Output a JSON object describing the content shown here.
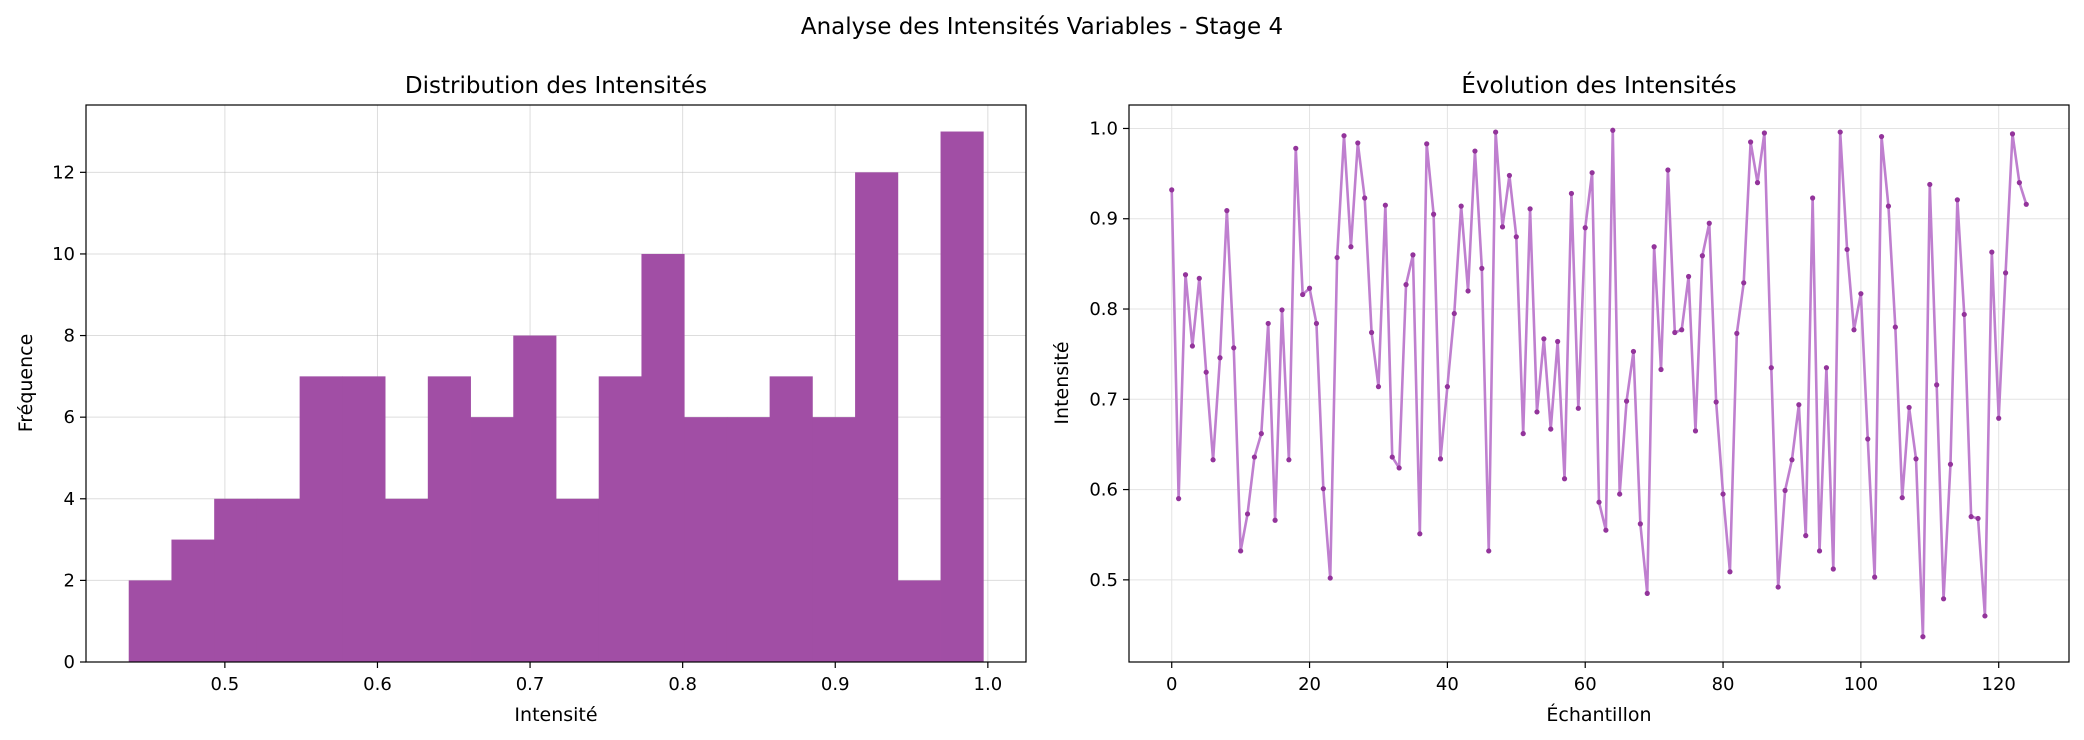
{
  "figure": {
    "suptitle": "Analyse des Intensités Variables - Stage 4"
  },
  "colors": {
    "hist_fill": "#a14ea5",
    "line": "#bf7fcf",
    "marker": "#93349b",
    "grid": "#e3e3e3",
    "axis": "#000000"
  },
  "chart_data": [
    {
      "type": "bar",
      "subtype": "histogram",
      "title": "Distribution des Intensités",
      "xlabel": "Intensité",
      "ylabel": "Fréquence",
      "bin_edges": [
        0.437,
        0.465,
        0.493,
        0.521,
        0.549,
        0.577,
        0.605,
        0.633,
        0.661,
        0.689,
        0.717,
        0.745,
        0.773,
        0.801,
        0.829,
        0.857,
        0.885,
        0.913,
        0.941,
        0.969,
        0.997
      ],
      "values": [
        2,
        3,
        4,
        4,
        7,
        7,
        4,
        7,
        6,
        8,
        4,
        7,
        10,
        6,
        6,
        7,
        6,
        12,
        2,
        13
      ],
      "xlim": [
        0.409,
        1.025
      ],
      "ylim": [
        0,
        13.65
      ],
      "xticks": [
        "0.5",
        "0.6",
        "0.7",
        "0.8",
        "0.9",
        "1.0"
      ],
      "xtick_values": [
        0.5,
        0.6,
        0.7,
        0.8,
        0.9,
        1.0
      ],
      "yticks": [
        "0",
        "2",
        "4",
        "6",
        "8",
        "10",
        "12"
      ],
      "ytick_values": [
        0,
        2,
        4,
        6,
        8,
        10,
        12
      ],
      "grid": true
    },
    {
      "type": "line",
      "title": "Évolution des Intensités",
      "xlabel": "Échantillon",
      "ylabel": "Intensité",
      "x_start": 0,
      "values": [
        0.932,
        0.59,
        0.838,
        0.759,
        0.834,
        0.73,
        0.633,
        0.746,
        0.909,
        0.757,
        0.532,
        0.573,
        0.636,
        0.662,
        0.784,
        0.566,
        0.799,
        0.633,
        0.978,
        0.816,
        0.823,
        0.784,
        0.601,
        0.502,
        0.857,
        0.992,
        0.869,
        0.984,
        0.923,
        0.774,
        0.714,
        0.915,
        0.636,
        0.624,
        0.827,
        0.86,
        0.551,
        0.983,
        0.905,
        0.634,
        0.714,
        0.795,
        0.914,
        0.82,
        0.975,
        0.845,
        0.532,
        0.996,
        0.891,
        0.948,
        0.88,
        0.662,
        0.911,
        0.686,
        0.767,
        0.667,
        0.764,
        0.612,
        0.928,
        0.69,
        0.89,
        0.951,
        0.586,
        0.555,
        0.998,
        0.595,
        0.698,
        0.753,
        0.562,
        0.485,
        0.869,
        0.733,
        0.954,
        0.774,
        0.777,
        0.836,
        0.665,
        0.859,
        0.895,
        0.697,
        0.595,
        0.509,
        0.773,
        0.829,
        0.985,
        0.94,
        0.995,
        0.735,
        0.492,
        0.599,
        0.633,
        0.694,
        0.549,
        0.923,
        0.532,
        0.735,
        0.512,
        0.996,
        0.866,
        0.777,
        0.817,
        0.656,
        0.503,
        0.991,
        0.914,
        0.78,
        0.591,
        0.691,
        0.634,
        0.437,
        0.938,
        0.716,
        0.479,
        0.628,
        0.921,
        0.794,
        0.57,
        0.568,
        0.46,
        0.863,
        0.679,
        0.84,
        0.994,
        0.94,
        0.916
      ],
      "xlim": [
        -6.2,
        130.2
      ],
      "ylim": [
        0.409,
        1.026
      ],
      "xticks": [
        "0",
        "20",
        "40",
        "60",
        "80",
        "100",
        "120"
      ],
      "xtick_values": [
        0,
        20,
        40,
        60,
        80,
        100,
        120
      ],
      "yticks": [
        "0.5",
        "0.6",
        "0.7",
        "0.8",
        "0.9",
        "1.0"
      ],
      "ytick_values": [
        0.5,
        0.6,
        0.7,
        0.8,
        0.9,
        1.0
      ],
      "grid": true
    }
  ]
}
